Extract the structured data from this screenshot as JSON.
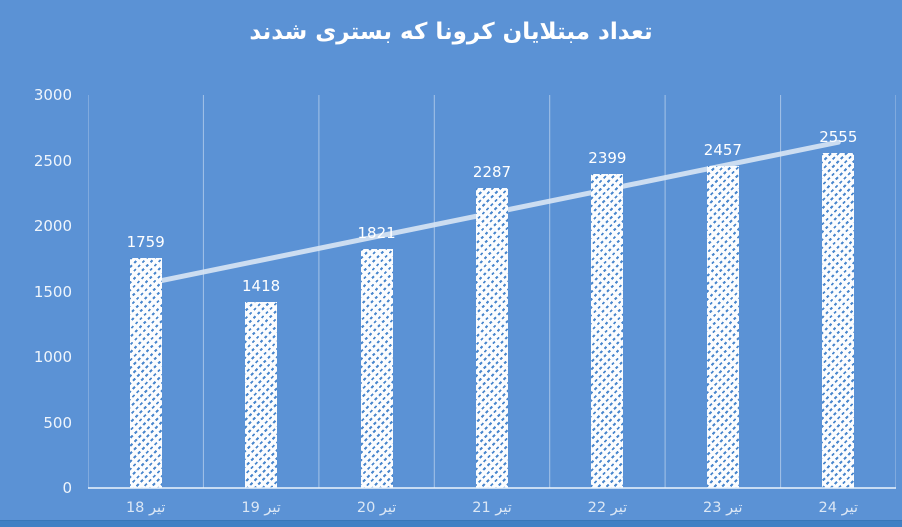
{
  "title": "تعداد مبتلایان کرونا که بستری شدند",
  "colors": {
    "background": "#5b92d5",
    "bottom_strip": "#4080c4",
    "title_text": "#ffffff",
    "gridline": "rgba(255,255,255,0.45)",
    "axis_line": "rgba(236,244,252,0.75)",
    "bar_base": "#fcfdfe",
    "bar_hatch": "#4a87cd",
    "value_label": "#ffffff",
    "ytick_label": "#eff5fc",
    "xtick_label": "#dbe7f5",
    "trendline": "#d9e6f5"
  },
  "chart_data": {
    "type": "bar",
    "title": "تعداد مبتلایان کرونا که بستری شدند",
    "categories": [
      "18 تیر",
      "19 تیر",
      "20 تیر",
      "21 تیر",
      "تیر 22",
      "23 تیر",
      "24 تیر"
    ],
    "values": [
      1759,
      1418,
      1821,
      2287,
      2399,
      2457,
      2555
    ],
    "data_labels": [
      "1759",
      "1418",
      "1821",
      "2287",
      "2399",
      "2457",
      "2555"
    ],
    "xlabel": "",
    "ylabel": "",
    "ylim": [
      0,
      3000
    ],
    "ytick_step": 500,
    "yticks": [
      "0",
      "500",
      "1000",
      "1500",
      "2000",
      "2500",
      "3000"
    ],
    "grid": "vertical-only",
    "legend": "none",
    "bar_pattern": "white-diagonal-hatch",
    "trendline": {
      "type": "linear",
      "start_value": 1559,
      "end_value": 2640
    }
  }
}
